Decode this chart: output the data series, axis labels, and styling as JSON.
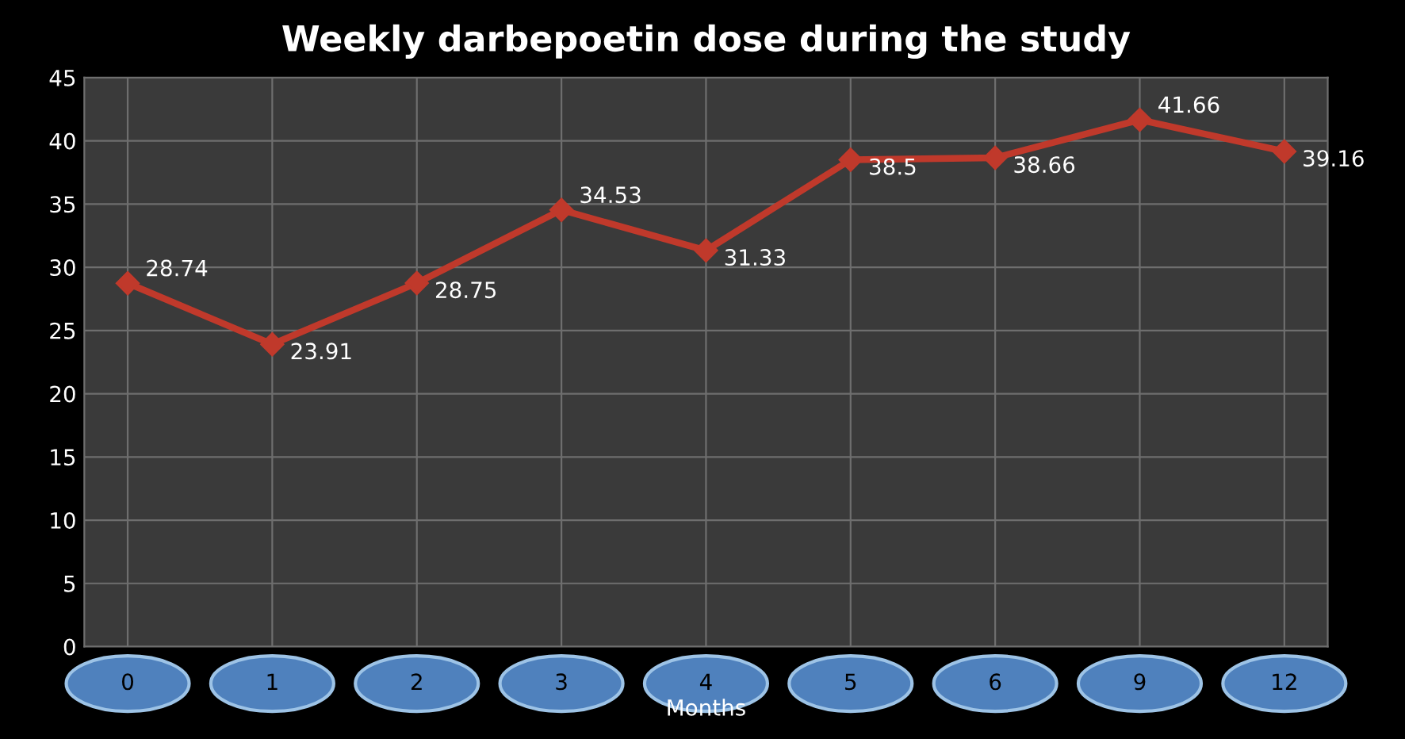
{
  "chart_data": {
    "type": "line",
    "title": "Weekly darbepoetin dose during the study",
    "xlabel": "Months",
    "categories": [
      "0",
      "1",
      "2",
      "3",
      "4",
      "5",
      "6",
      "9",
      "12"
    ],
    "values": [
      28.74,
      23.91,
      28.75,
      34.53,
      31.33,
      38.5,
      38.66,
      41.66,
      39.16
    ],
    "color": "#c0392b",
    "marker": "diamond",
    "line_style": "solid",
    "data_labels": true,
    "ylim": [
      0,
      45
    ],
    "yticks": [
      0,
      5,
      10,
      15,
      20,
      25,
      30,
      35,
      40,
      45
    ],
    "grid": true,
    "legend": false
  }
}
